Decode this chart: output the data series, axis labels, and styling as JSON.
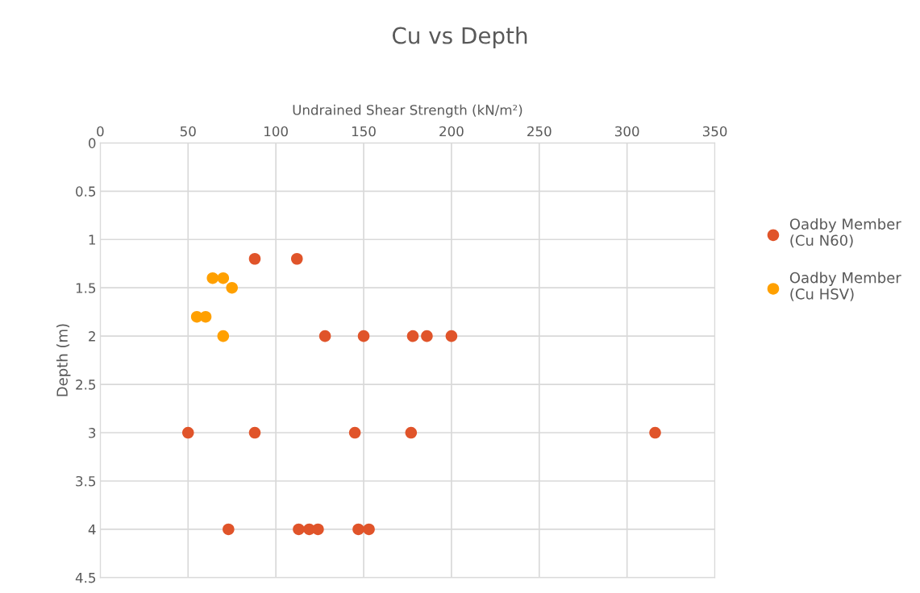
{
  "chart_data": {
    "type": "scatter",
    "title": "Cu vs Depth",
    "xlabel": "Undrained Shear Strength (kN/m²)",
    "ylabel": "Depth (m)",
    "xlim": [
      0,
      350
    ],
    "xticks": [
      0,
      50,
      100,
      150,
      200,
      250,
      300,
      350
    ],
    "ylim": [
      4.5,
      0
    ],
    "yticks": [
      0,
      0.5,
      1,
      1.5,
      2,
      2.5,
      3,
      3.5,
      4,
      4.5
    ],
    "grid": true,
    "legend": "right",
    "marker": "circle",
    "series": [
      {
        "name": "Oadby Member\n(Cu N60)",
        "color": "#e0542a",
        "x": [
          88,
          112,
          128,
          150,
          178,
          186,
          200,
          50,
          88,
          145,
          177,
          316,
          73,
          113,
          119,
          124,
          147,
          153
        ],
        "values": [
          1.2,
          1.2,
          2,
          2,
          2,
          2,
          2,
          3,
          3,
          3,
          3,
          3,
          4,
          4,
          4,
          4,
          4,
          4
        ]
      },
      {
        "name": "Oadby Member\n(Cu HSV)",
        "color": "#ffa000",
        "x": [
          64,
          70,
          75,
          55,
          60,
          70
        ],
        "values": [
          1.4,
          1.4,
          1.5,
          1.8,
          1.8,
          2
        ]
      }
    ]
  }
}
